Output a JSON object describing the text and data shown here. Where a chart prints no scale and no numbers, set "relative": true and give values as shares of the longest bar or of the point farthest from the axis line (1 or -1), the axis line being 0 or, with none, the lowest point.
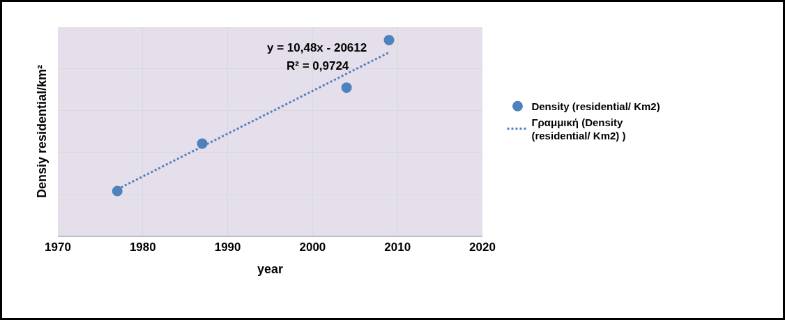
{
  "chart_data": {
    "type": "scatter",
    "xlabel": "year",
    "ylabel": "Densiy residential/km²",
    "relative": true,
    "x": [
      1977,
      1987,
      2004,
      2009
    ],
    "xlim": [
      1970,
      2020
    ],
    "xticks": [
      1970,
      1980,
      1990,
      2000,
      2010,
      2020
    ],
    "grid": true,
    "legend": "right",
    "marker": "circle",
    "series": [
      {
        "name": "Density (residential/ Km2)",
        "color": "#4f81bd",
        "values": [
          0.228,
          0.471,
          0.757,
          1
        ]
      },
      {
        "name": "Γραμμική (Density (residential/ Km2) )",
        "type": "line",
        "color": "#4f81bd",
        "line_style": "dotted",
        "marker": "none",
        "x": [
          1977,
          2009
        ],
        "values": [
          0.237,
          0.937
        ]
      }
    ],
    "annotations": [
      "y = 10,48x - 20612",
      "R² = 0,9724"
    ]
  }
}
